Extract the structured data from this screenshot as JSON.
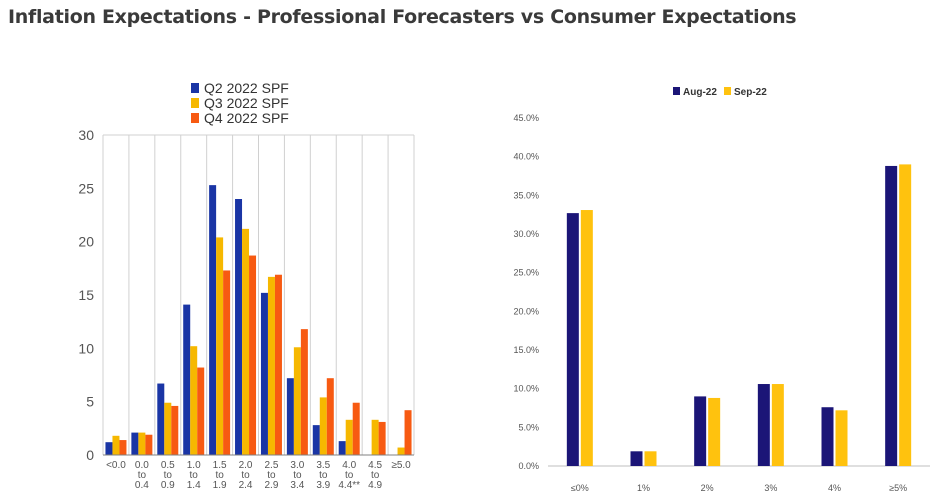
{
  "title": "Inflation Expectations - Professional Forecasters vs Consumer Expectations",
  "colors": {
    "q2": "#1a35a5",
    "q3": "#f6b800",
    "q4": "#f75a12",
    "aug": "#1b1577",
    "sep": "#ffc20e",
    "grid": "#d0d0d0",
    "axis": "#808080",
    "text": "#555555"
  },
  "chart_data": [
    {
      "type": "bar",
      "title": "",
      "xlabel": "",
      "ylabel": "",
      "ylim": [
        0,
        30
      ],
      "yticks": [
        "0",
        "5",
        "10",
        "15",
        "20",
        "25",
        "30"
      ],
      "legend_position": "top-center",
      "categories": [
        [
          "<0.0"
        ],
        [
          "0.0",
          "to",
          "0.4"
        ],
        [
          "0.5",
          "to",
          "0.9"
        ],
        [
          "1.0",
          "to",
          "1.4"
        ],
        [
          "1.5",
          "to",
          "1.9"
        ],
        [
          "2.0",
          "to",
          "2.4"
        ],
        [
          "2.5",
          "to",
          "2.9"
        ],
        [
          "3.0",
          "to",
          "3.4"
        ],
        [
          "3.5",
          "to",
          "3.9"
        ],
        [
          "4.0",
          "to",
          "4.4**"
        ],
        [
          "4.5",
          "to",
          "4.9"
        ],
        [
          "≥5.0"
        ]
      ],
      "series": [
        {
          "name": "Q2 2022 SPF",
          "color_key": "q2",
          "values": [
            1.2,
            2.1,
            6.7,
            14.1,
            25.3,
            24.0,
            15.2,
            7.2,
            2.8,
            1.3,
            0.0,
            0.0
          ]
        },
        {
          "name": "Q3 2022 SPF",
          "color_key": "q3",
          "values": [
            1.8,
            2.1,
            4.9,
            10.2,
            20.4,
            21.2,
            16.7,
            10.1,
            5.4,
            3.3,
            3.3,
            0.7
          ]
        },
        {
          "name": "Q4 2022 SPF",
          "color_key": "q4",
          "values": [
            1.4,
            1.9,
            4.6,
            8.2,
            17.3,
            18.7,
            16.9,
            11.8,
            7.2,
            4.9,
            3.1,
            4.2
          ]
        }
      ]
    },
    {
      "type": "bar",
      "title": "",
      "xlabel": "",
      "ylabel": "",
      "ylim": [
        0,
        45
      ],
      "yticks": [
        "0.0%",
        "5.0%",
        "10.0%",
        "15.0%",
        "20.0%",
        "25.0%",
        "30.0%",
        "35.0%",
        "40.0%",
        "45.0%"
      ],
      "legend_position": "top-center",
      "categories": [
        "≤0%",
        "1%",
        "2%",
        "3%",
        "4%",
        "≥5%"
      ],
      "series": [
        {
          "name": "Aug-22",
          "color_key": "aug",
          "values": [
            32.7,
            1.9,
            9.0,
            10.6,
            7.6,
            38.8
          ]
        },
        {
          "name": "Sep-22",
          "color_key": "sep",
          "values": [
            33.1,
            1.9,
            8.8,
            10.6,
            7.2,
            39.0
          ]
        }
      ]
    }
  ]
}
